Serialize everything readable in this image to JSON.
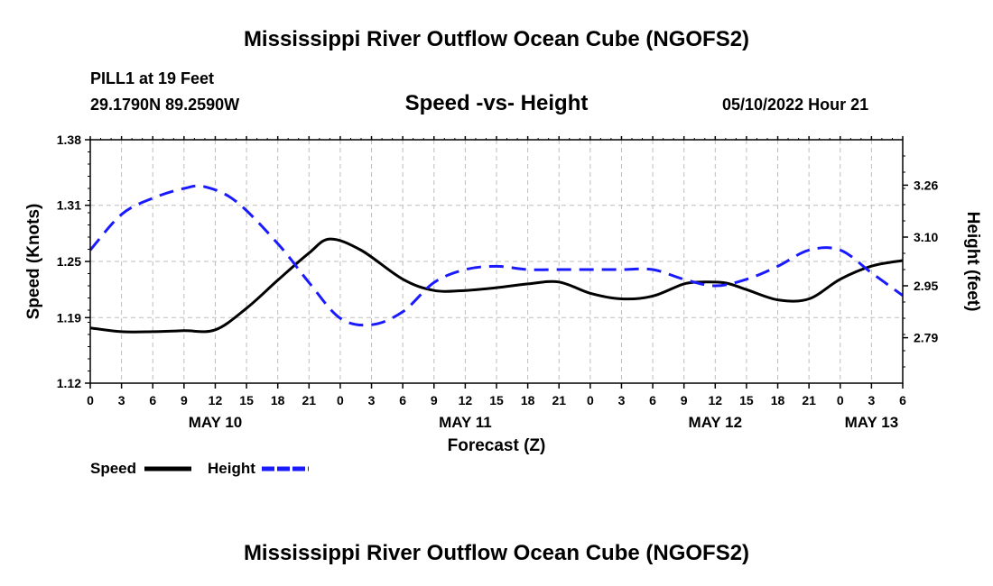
{
  "header": {
    "title": "Mississippi River Outflow Ocean Cube (NGOFS2)",
    "station": "PILL1 at 19 Feet",
    "coordinates": "29.1790N  89.2590W",
    "subtitle": "Speed -vs- Height",
    "timestamp": "05/10/2022 Hour 21"
  },
  "footer": {
    "title": "Mississippi River Outflow Ocean Cube (NGOFS2)"
  },
  "chart_data": {
    "type": "line",
    "xlabel": "Forecast (Z)",
    "ylabel_left": "Speed (Knots)",
    "ylabel_right": "Height (feet)",
    "x_hours_range": [
      0,
      78
    ],
    "x_tick_labels": [
      "0",
      "3",
      "6",
      "9",
      "12",
      "15",
      "18",
      "21",
      "0",
      "3",
      "6",
      "9",
      "12",
      "15",
      "18",
      "21",
      "0",
      "3",
      "6",
      "9",
      "12",
      "15",
      "18",
      "21",
      "0",
      "3",
      "6"
    ],
    "date_labels": [
      {
        "label": "MAY 10",
        "hour": 12
      },
      {
        "label": "MAY 11",
        "hour": 36
      },
      {
        "label": "MAY 12",
        "hour": 60
      },
      {
        "label": "MAY 13",
        "hour": 75
      }
    ],
    "y_left": {
      "ticks": [
        1.12,
        1.19,
        1.25,
        1.31,
        1.38
      ],
      "lim": [
        1.12,
        1.38
      ]
    },
    "y_right": {
      "ticks": [
        2.79,
        2.95,
        3.1,
        3.26
      ],
      "lim": [
        2.65,
        3.4
      ]
    },
    "grid": true,
    "legend": [
      {
        "label": "Speed",
        "color": "#000000",
        "style": "solid"
      },
      {
        "label": "Height",
        "color": "#1a1aff",
        "style": "dashed"
      }
    ],
    "series": [
      {
        "name": "Speed",
        "axis": "left",
        "color": "#000000",
        "dash": "none",
        "x": [
          0,
          3,
          6,
          9,
          12,
          15,
          18,
          21,
          23,
          26,
          30,
          33,
          36,
          39,
          42,
          45,
          48,
          51,
          54,
          57,
          59,
          61,
          63,
          66,
          69,
          72,
          75,
          78
        ],
        "values": [
          1.179,
          1.175,
          1.175,
          1.176,
          1.177,
          1.2,
          1.23,
          1.259,
          1.274,
          1.262,
          1.231,
          1.219,
          1.219,
          1.222,
          1.226,
          1.228,
          1.216,
          1.21,
          1.213,
          1.226,
          1.228,
          1.227,
          1.22,
          1.209,
          1.21,
          1.231,
          1.245,
          1.251
        ]
      },
      {
        "name": "Height",
        "axis": "right",
        "color": "#1a1aff",
        "dash": "16,9",
        "x": [
          0,
          3,
          6,
          9,
          11,
          14,
          18,
          21,
          24,
          27,
          30,
          33,
          36,
          39,
          42,
          45,
          48,
          51,
          54,
          57,
          60,
          63,
          66,
          69,
          72,
          75,
          78
        ],
        "values": [
          3.06,
          3.17,
          3.22,
          3.25,
          3.255,
          3.21,
          3.08,
          2.96,
          2.85,
          2.83,
          2.87,
          2.96,
          3.0,
          3.01,
          3.0,
          3.0,
          3.0,
          3.0,
          3.0,
          2.97,
          2.95,
          2.97,
          3.01,
          3.06,
          3.06,
          2.99,
          2.92
        ]
      }
    ]
  }
}
